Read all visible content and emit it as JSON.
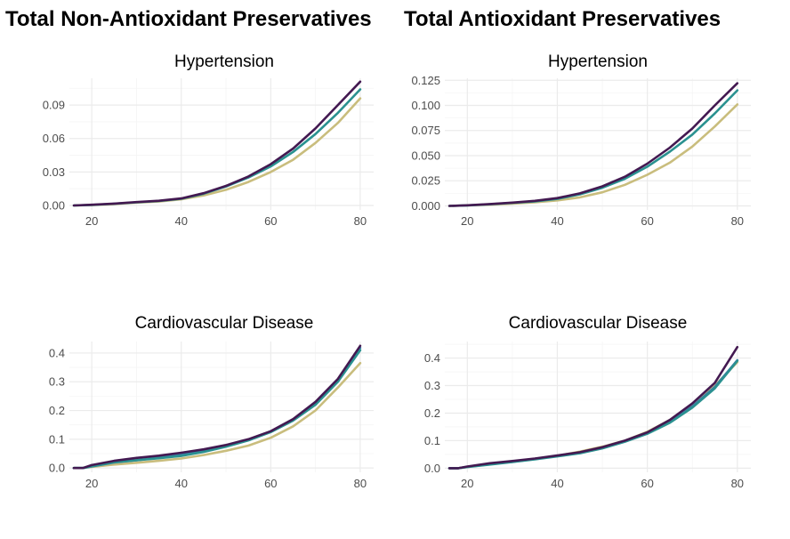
{
  "columns": [
    {
      "title": "Total Non-Antioxidant Preservatives"
    },
    {
      "title": "Total Antioxidant Preservatives"
    }
  ],
  "colors": {
    "low": "#c9bd7d",
    "mid": "#2a9190",
    "high": "#431951",
    "mid2": "#3b7fa8"
  },
  "chart_data": [
    {
      "type": "line",
      "title": "Hypertension",
      "xlabel": "",
      "ylabel": "",
      "xlim": [
        15,
        83
      ],
      "ylim": [
        -0.004,
        0.114
      ],
      "xticks": [
        20,
        40,
        60,
        80
      ],
      "yticks": [
        0,
        0.03,
        0.06,
        0.09
      ],
      "ytick_labels": [
        "0.00",
        "0.03",
        "0.06",
        "0.09"
      ],
      "grid": true,
      "series": [
        {
          "color": "#c9bd7d",
          "x": [
            16,
            20,
            25,
            30,
            35,
            40,
            45,
            50,
            55,
            60,
            65,
            70,
            75,
            80
          ],
          "y": [
            0,
            0.0003,
            0.0012,
            0.0025,
            0.0035,
            0.0055,
            0.009,
            0.014,
            0.021,
            0.03,
            0.041,
            0.056,
            0.074,
            0.096
          ]
        },
        {
          "color": "#2a9190",
          "x": [
            16,
            20,
            25,
            30,
            35,
            40,
            45,
            50,
            55,
            60,
            65,
            70,
            75,
            80
          ],
          "y": [
            0,
            0.0005,
            0.0015,
            0.0028,
            0.004,
            0.006,
            0.0105,
            0.017,
            0.025,
            0.035,
            0.048,
            0.064,
            0.083,
            0.104
          ]
        },
        {
          "color": "#431951",
          "x": [
            16,
            20,
            25,
            30,
            35,
            40,
            45,
            50,
            55,
            60,
            65,
            70,
            75,
            80
          ],
          "y": [
            0,
            0.0006,
            0.0017,
            0.003,
            0.0042,
            0.0063,
            0.011,
            0.0175,
            0.026,
            0.037,
            0.051,
            0.069,
            0.09,
            0.111
          ]
        }
      ]
    },
    {
      "type": "line",
      "title": "Hypertension",
      "xlabel": "",
      "ylabel": "",
      "xlim": [
        15,
        83
      ],
      "ylim": [
        -0.004,
        0.127
      ],
      "xticks": [
        20,
        40,
        60,
        80
      ],
      "yticks": [
        0,
        0.025,
        0.05,
        0.075,
        0.1,
        0.125
      ],
      "ytick_labels": [
        "0.000",
        "0.025",
        "0.050",
        "0.075",
        "0.100",
        "0.125"
      ],
      "grid": true,
      "series": [
        {
          "color": "#c9bd7d",
          "x": [
            16,
            20,
            25,
            30,
            35,
            40,
            45,
            50,
            55,
            60,
            65,
            70,
            75,
            80
          ],
          "y": [
            0,
            0.0004,
            0.0012,
            0.0022,
            0.0035,
            0.0055,
            0.0085,
            0.0135,
            0.021,
            0.031,
            0.043,
            0.059,
            0.079,
            0.101
          ]
        },
        {
          "color": "#2a9190",
          "x": [
            16,
            20,
            25,
            30,
            35,
            40,
            45,
            50,
            55,
            60,
            65,
            70,
            75,
            80
          ],
          "y": [
            0,
            0.0005,
            0.0016,
            0.003,
            0.0045,
            0.007,
            0.0115,
            0.018,
            0.027,
            0.039,
            0.054,
            0.071,
            0.092,
            0.115
          ]
        },
        {
          "color": "#431951",
          "x": [
            16,
            20,
            25,
            30,
            35,
            40,
            45,
            50,
            55,
            60,
            65,
            70,
            75,
            80
          ],
          "y": [
            0,
            0.0006,
            0.0018,
            0.0033,
            0.005,
            0.0078,
            0.0125,
            0.0195,
            0.029,
            0.042,
            0.058,
            0.077,
            0.1,
            0.122
          ]
        }
      ]
    },
    {
      "type": "line",
      "title": "Cardiovascular Disease",
      "xlabel": "",
      "ylabel": "",
      "xlim": [
        15,
        83
      ],
      "ylim": [
        -0.015,
        0.44
      ],
      "xticks": [
        20,
        40,
        60,
        80
      ],
      "yticks": [
        0,
        0.1,
        0.2,
        0.3,
        0.4
      ],
      "ytick_labels": [
        "0.0",
        "0.1",
        "0.2",
        "0.3",
        "0.4"
      ],
      "grid": true,
      "series": [
        {
          "color": "#c9bd7d",
          "x": [
            16,
            18,
            20,
            25,
            30,
            35,
            40,
            45,
            50,
            55,
            60,
            65,
            70,
            75,
            80
          ],
          "y": [
            0,
            0,
            0.004,
            0.012,
            0.018,
            0.025,
            0.033,
            0.045,
            0.06,
            0.078,
            0.105,
            0.145,
            0.2,
            0.28,
            0.365
          ]
        },
        {
          "color": "#2a9190",
          "x": [
            16,
            18,
            20,
            25,
            30,
            35,
            40,
            45,
            50,
            55,
            60,
            65,
            70,
            75,
            80
          ],
          "y": [
            0,
            0,
            0.006,
            0.02,
            0.027,
            0.034,
            0.042,
            0.056,
            0.074,
            0.096,
            0.125,
            0.165,
            0.22,
            0.3,
            0.41
          ]
        },
        {
          "color": "#431951",
          "x": [
            16,
            18,
            20,
            25,
            30,
            35,
            40,
            45,
            50,
            55,
            60,
            65,
            70,
            75,
            80
          ],
          "y": [
            0,
            0,
            0.01,
            0.025,
            0.035,
            0.043,
            0.053,
            0.065,
            0.08,
            0.1,
            0.128,
            0.17,
            0.23,
            0.31,
            0.425
          ]
        },
        {
          "color": "#3b7fa8",
          "x": [
            16,
            18,
            20,
            25,
            30,
            35,
            40,
            45,
            50,
            55,
            60,
            65,
            70,
            75,
            80
          ],
          "y": [
            0,
            0,
            0.005,
            0.019,
            0.027,
            0.036,
            0.046,
            0.06,
            0.077,
            0.098,
            0.127,
            0.167,
            0.224,
            0.305,
            0.418
          ]
        }
      ]
    },
    {
      "type": "line",
      "title": "Cardiovascular Disease",
      "xlabel": "",
      "ylabel": "",
      "xlim": [
        15,
        83
      ],
      "ylim": [
        -0.015,
        0.46
      ],
      "xticks": [
        20,
        40,
        60,
        80
      ],
      "yticks": [
        0,
        0.1,
        0.2,
        0.3,
        0.4
      ],
      "ytick_labels": [
        "0.0",
        "0.1",
        "0.2",
        "0.3",
        "0.4"
      ],
      "grid": true,
      "series": [
        {
          "color": "#c9bd7d",
          "x": [
            16,
            18,
            20,
            25,
            30,
            35,
            40,
            45,
            50,
            55,
            60,
            65,
            70,
            75,
            80
          ],
          "y": [
            0,
            0,
            0.004,
            0.014,
            0.024,
            0.034,
            0.045,
            0.06,
            0.078,
            0.1,
            0.132,
            0.175,
            0.232,
            0.3,
            0.385
          ]
        },
        {
          "color": "#2a9190",
          "x": [
            16,
            18,
            20,
            25,
            30,
            35,
            40,
            45,
            50,
            55,
            60,
            65,
            70,
            75,
            80
          ],
          "y": [
            0,
            0,
            0.004,
            0.013,
            0.022,
            0.032,
            0.043,
            0.054,
            0.072,
            0.096,
            0.125,
            0.165,
            0.22,
            0.29,
            0.39
          ]
        },
        {
          "color": "#431951",
          "x": [
            16,
            18,
            20,
            25,
            30,
            35,
            40,
            45,
            50,
            55,
            60,
            65,
            70,
            75,
            80
          ],
          "y": [
            0,
            0,
            0.006,
            0.018,
            0.026,
            0.035,
            0.046,
            0.058,
            0.076,
            0.1,
            0.13,
            0.175,
            0.235,
            0.31,
            0.44
          ]
        },
        {
          "color": "#3b7fa8",
          "x": [
            16,
            18,
            20,
            25,
            30,
            35,
            40,
            45,
            50,
            55,
            60,
            65,
            70,
            75,
            80
          ],
          "y": [
            0,
            0,
            0.005,
            0.015,
            0.023,
            0.033,
            0.044,
            0.056,
            0.073,
            0.097,
            0.127,
            0.168,
            0.224,
            0.295,
            0.392
          ]
        }
      ]
    }
  ]
}
